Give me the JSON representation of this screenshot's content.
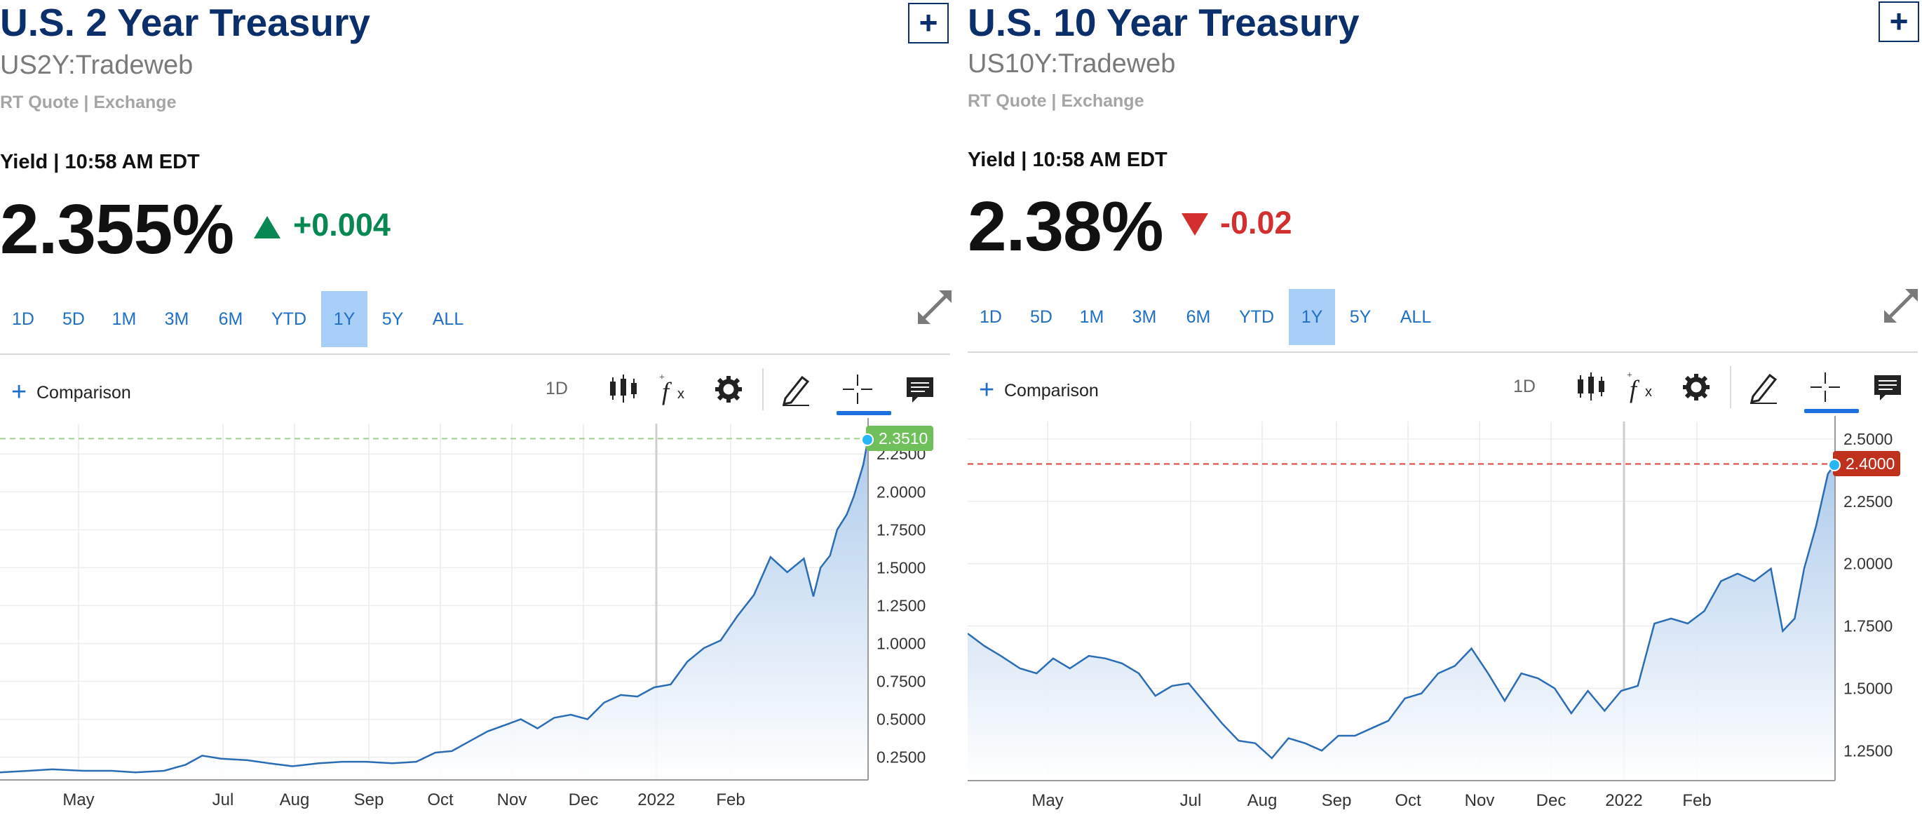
{
  "panels": [
    {
      "title": "U.S. 2 Year Treasury",
      "symbol": "US2Y:Tradeweb",
      "rt_quote": "RT Quote | Exchange",
      "yield_time": "Yield | 10:58 AM EDT",
      "price": "2.355%",
      "change": "+0.004",
      "change_direction": "up",
      "change_color": "#078751",
      "add_label": "+",
      "ranges": [
        "1D",
        "5D",
        "1M",
        "3M",
        "6M",
        "YTD",
        "1Y",
        "5Y",
        "ALL"
      ],
      "active_range": "1Y",
      "toolbar": {
        "comparison_plus": "+",
        "comparison_label": "Comparison",
        "interval_label": "1D"
      },
      "last_value_label": "2.3510",
      "last_badge_color": "#6fbf5a"
    },
    {
      "title": "U.S. 10 Year Treasury",
      "symbol": "US10Y:Tradeweb",
      "rt_quote": "RT Quote | Exchange",
      "yield_time": "Yield | 10:58 AM EDT",
      "price": "2.38%",
      "change": "-0.02",
      "change_direction": "down",
      "change_color": "#d32f2f",
      "add_label": "+",
      "ranges": [
        "1D",
        "5D",
        "1M",
        "3M",
        "6M",
        "YTD",
        "1Y",
        "5Y",
        "ALL"
      ],
      "active_range": "1Y",
      "toolbar": {
        "comparison_plus": "+",
        "comparison_label": "Comparison",
        "interval_label": "1D"
      },
      "last_value_label": "2.4000",
      "last_badge_color": "#c0311d"
    }
  ],
  "colors": {
    "accent": "#1f6fc5",
    "title": "#0a2f6b",
    "line": "#2b6db5",
    "area_top": "#a9c8ea"
  },
  "chart_data": [
    {
      "type": "area",
      "title": "",
      "x_tick_labels": [
        "May",
        "Jul",
        "Aug",
        "Sep",
        "Oct",
        "Nov",
        "Dec",
        "2022",
        "Feb"
      ],
      "y_tick_labels": [
        "0.2500",
        "0.5000",
        "0.7500",
        "1.0000",
        "1.2500",
        "1.5000",
        "1.7500",
        "2.0000",
        "2.2500"
      ],
      "ylim": [
        0.1,
        2.45
      ],
      "grid": true,
      "reference_line": 2.351,
      "last_value": 2.351,
      "x": [
        "2021-03-24",
        "2021-04-05",
        "2021-04-15",
        "2021-04-28",
        "2021-05-10",
        "2021-05-20",
        "2021-06-01",
        "2021-06-10",
        "2021-06-17",
        "2021-06-25",
        "2021-07-06",
        "2021-07-15",
        "2021-07-25",
        "2021-08-05",
        "2021-08-15",
        "2021-08-25",
        "2021-09-05",
        "2021-09-15",
        "2021-09-23",
        "2021-09-30",
        "2021-10-08",
        "2021-10-15",
        "2021-10-22",
        "2021-10-29",
        "2021-11-05",
        "2021-11-12",
        "2021-11-19",
        "2021-11-26",
        "2021-12-03",
        "2021-12-10",
        "2021-12-17",
        "2021-12-24",
        "2021-12-31",
        "2022-01-07",
        "2022-01-14",
        "2022-01-21",
        "2022-01-28",
        "2022-02-04",
        "2022-02-11",
        "2022-02-18",
        "2022-02-25",
        "2022-03-01",
        "2022-03-04",
        "2022-03-08",
        "2022-03-11",
        "2022-03-15",
        "2022-03-18",
        "2022-03-22",
        "2022-03-24"
      ],
      "y": [
        0.15,
        0.16,
        0.17,
        0.16,
        0.16,
        0.15,
        0.16,
        0.2,
        0.26,
        0.24,
        0.23,
        0.21,
        0.19,
        0.21,
        0.22,
        0.22,
        0.21,
        0.22,
        0.28,
        0.29,
        0.36,
        0.42,
        0.46,
        0.5,
        0.44,
        0.51,
        0.53,
        0.5,
        0.61,
        0.66,
        0.65,
        0.71,
        0.73,
        0.88,
        0.97,
        1.02,
        1.18,
        1.32,
        1.57,
        1.47,
        1.56,
        1.31,
        1.5,
        1.58,
        1.75,
        1.85,
        1.97,
        2.18,
        2.35
      ]
    },
    {
      "type": "area",
      "title": "",
      "x_tick_labels": [
        "May",
        "Jul",
        "Aug",
        "Sep",
        "Oct",
        "Nov",
        "Dec",
        "2022",
        "Feb"
      ],
      "y_tick_labels": [
        "1.2500",
        "1.5000",
        "1.7500",
        "2.0000",
        "2.2500",
        "2.5000"
      ],
      "ylim": [
        1.13,
        2.57
      ],
      "grid": true,
      "reference_line": 2.4,
      "last_value": 2.4,
      "x": [
        "2021-03-24",
        "2021-03-31",
        "2021-04-07",
        "2021-04-15",
        "2021-04-22",
        "2021-04-29",
        "2021-05-06",
        "2021-05-14",
        "2021-05-21",
        "2021-05-28",
        "2021-06-04",
        "2021-06-11",
        "2021-06-18",
        "2021-06-25",
        "2021-07-02",
        "2021-07-09",
        "2021-07-16",
        "2021-07-23",
        "2021-07-30",
        "2021-08-06",
        "2021-08-13",
        "2021-08-20",
        "2021-08-27",
        "2021-09-03",
        "2021-09-10",
        "2021-09-17",
        "2021-09-24",
        "2021-10-01",
        "2021-10-08",
        "2021-10-15",
        "2021-10-22",
        "2021-10-29",
        "2021-11-05",
        "2021-11-12",
        "2021-11-19",
        "2021-11-26",
        "2021-12-03",
        "2021-12-10",
        "2021-12-17",
        "2021-12-24",
        "2021-12-31",
        "2022-01-07",
        "2022-01-14",
        "2022-01-21",
        "2022-01-28",
        "2022-02-04",
        "2022-02-11",
        "2022-02-18",
        "2022-02-25",
        "2022-03-02",
        "2022-03-07",
        "2022-03-11",
        "2022-03-16",
        "2022-03-21",
        "2022-03-24"
      ],
      "y": [
        1.72,
        1.67,
        1.63,
        1.58,
        1.56,
        1.62,
        1.58,
        1.63,
        1.62,
        1.6,
        1.56,
        1.47,
        1.51,
        1.52,
        1.44,
        1.36,
        1.29,
        1.28,
        1.22,
        1.3,
        1.28,
        1.25,
        1.31,
        1.31,
        1.34,
        1.37,
        1.46,
        1.48,
        1.56,
        1.59,
        1.66,
        1.56,
        1.45,
        1.56,
        1.54,
        1.5,
        1.4,
        1.49,
        1.41,
        1.49,
        1.51,
        1.76,
        1.78,
        1.76,
        1.81,
        1.93,
        1.96,
        1.93,
        1.98,
        1.73,
        1.78,
        1.98,
        2.15,
        2.36,
        2.4
      ]
    }
  ]
}
